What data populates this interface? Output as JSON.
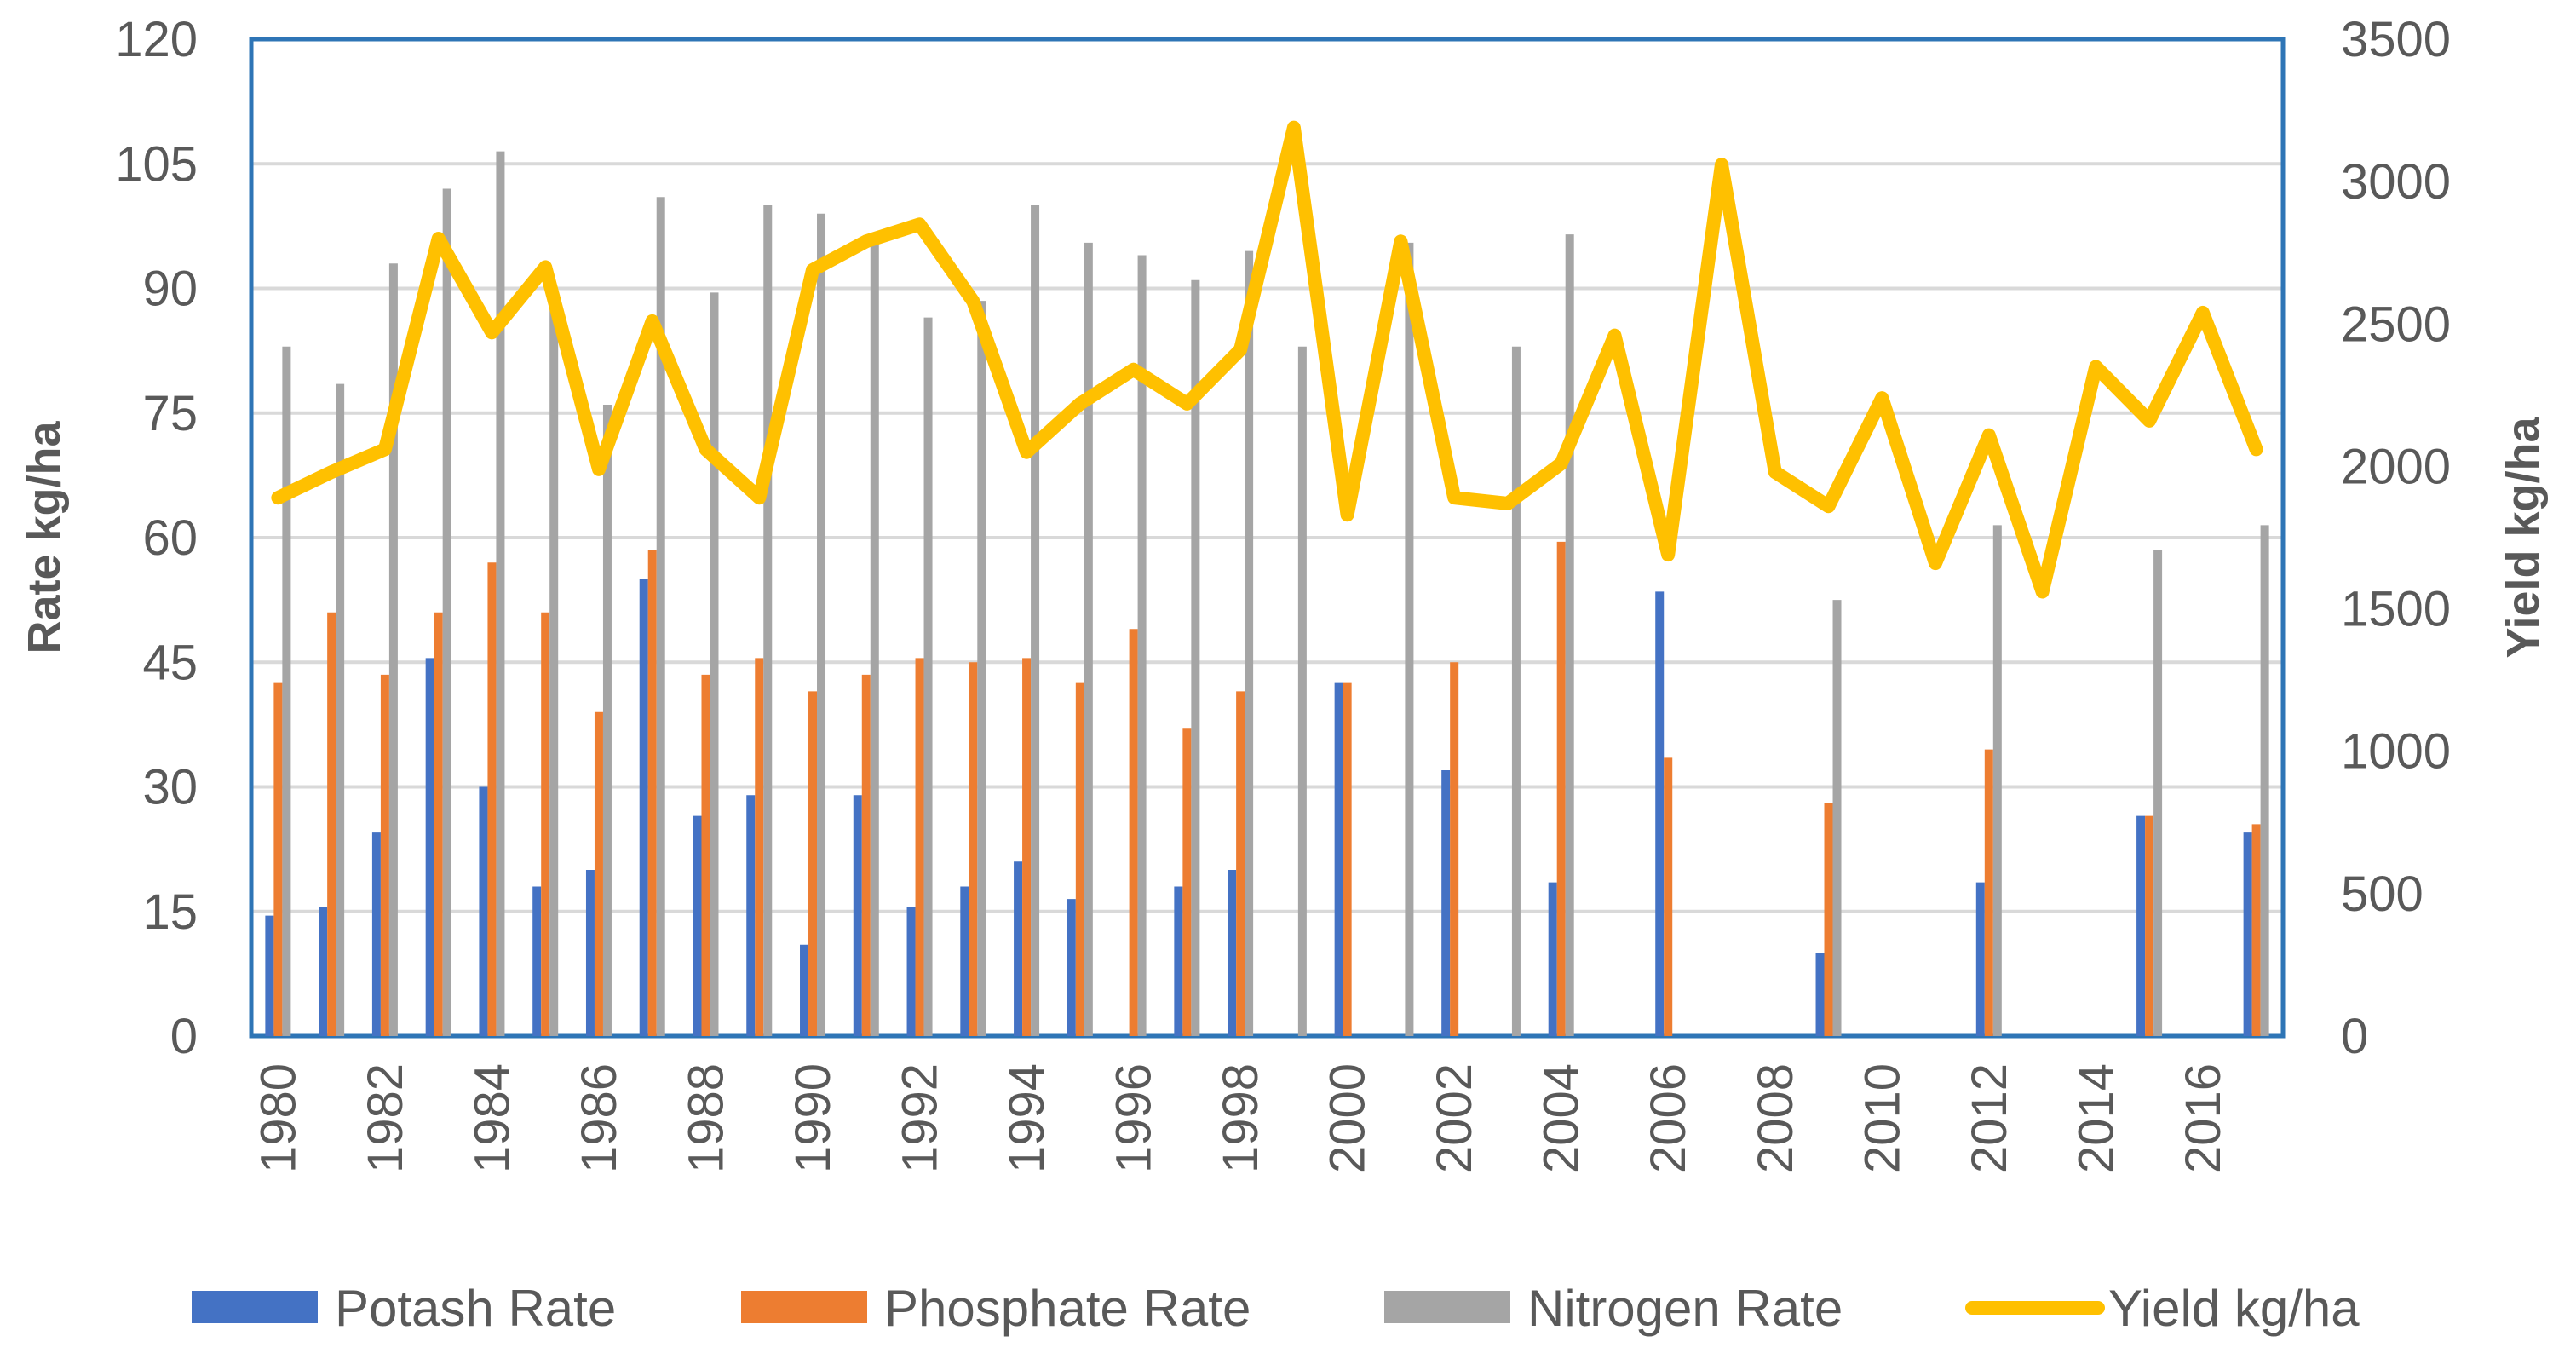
{
  "chart_data": {
    "type": "bar+line",
    "title": "",
    "xlabel": "",
    "ylabel": "Rate kg/ha",
    "y2label": "Yield kg/ha",
    "ylim": [
      0,
      120
    ],
    "y2lim": [
      0,
      3500
    ],
    "yticks": [
      "0",
      "15",
      "30",
      "45",
      "60",
      "75",
      "90",
      "105",
      "120"
    ],
    "y2ticks": [
      "0",
      "500",
      "1000",
      "1500",
      "2000",
      "2500",
      "3000",
      "3500"
    ],
    "grid": true,
    "legend_position": "bottom",
    "categories": [
      "1980",
      "1981",
      "1982",
      "1983",
      "1984",
      "1985",
      "1986",
      "1987",
      "1988",
      "1989",
      "1990",
      "1991",
      "1992",
      "1993",
      "1994",
      "1995",
      "1996",
      "1997",
      "1998",
      "1999",
      "2000",
      "2001",
      "2002",
      "2003",
      "2004",
      "2005",
      "2006",
      "2007",
      "2008",
      "2009",
      "2010",
      "2011",
      "2012",
      "2013",
      "2014",
      "2015",
      "2016",
      "2017"
    ],
    "xtick_labels": [
      "1980",
      "1982",
      "1984",
      "1986",
      "1988",
      "1990",
      "1992",
      "1994",
      "1996",
      "1998",
      "2000",
      "2002",
      "2004",
      "2006",
      "2008",
      "2010",
      "2012",
      "2014",
      "2016"
    ],
    "series": [
      {
        "name": "Potash Rate",
        "kind": "bar",
        "axis": "left",
        "color": "#4472C4",
        "values": [
          14.5,
          15.5,
          24.5,
          45.5,
          30,
          18,
          20,
          55,
          26.5,
          29,
          11,
          29,
          15.5,
          18,
          21,
          16.5,
          0,
          18,
          20,
          0,
          42.5,
          0,
          32,
          0,
          18.5,
          0,
          53.5,
          0,
          0,
          10,
          0,
          0,
          18.5,
          0,
          0,
          26.5,
          0,
          24.5
        ]
      },
      {
        "name": "Phosphate Rate",
        "kind": "bar",
        "axis": "left",
        "color": "#ED7D31",
        "values": [
          42.5,
          51,
          43.5,
          51,
          57,
          51,
          39,
          58.5,
          43.5,
          45.5,
          41.5,
          43.5,
          45.5,
          45,
          45.5,
          42.5,
          49,
          37,
          41.5,
          0,
          42.5,
          0,
          45,
          0,
          59.5,
          0,
          33.5,
          0,
          0,
          28,
          0,
          0,
          34.5,
          0,
          0,
          26.5,
          0,
          25.5
        ]
      },
      {
        "name": "Nitrogen Rate",
        "kind": "bar",
        "axis": "left",
        "color": "#A5A5A5",
        "values": [
          83,
          78.5,
          93,
          102,
          106.5,
          88,
          76,
          101,
          89.5,
          100,
          99,
          96,
          86.5,
          88.5,
          100,
          95.5,
          94,
          91,
          94.5,
          83,
          0,
          95.5,
          0,
          83,
          96.5,
          0,
          0,
          0,
          0,
          52.5,
          0,
          0,
          61.5,
          0,
          0,
          58.5,
          0,
          61.5
        ]
      },
      {
        "name": "Yield kg/ha",
        "kind": "line",
        "axis": "right",
        "color": "#FFC000",
        "values": [
          1890,
          1980,
          2060,
          2800,
          2470,
          2700,
          1990,
          2510,
          2060,
          1890,
          2690,
          2790,
          2850,
          2580,
          2050,
          2220,
          2340,
          2220,
          2410,
          3190,
          1830,
          2790,
          1890,
          1870,
          2010,
          2460,
          1690,
          3060,
          1980,
          1860,
          2240,
          1660,
          2110,
          1560,
          2350,
          2160,
          2540,
          2060
        ]
      }
    ]
  }
}
